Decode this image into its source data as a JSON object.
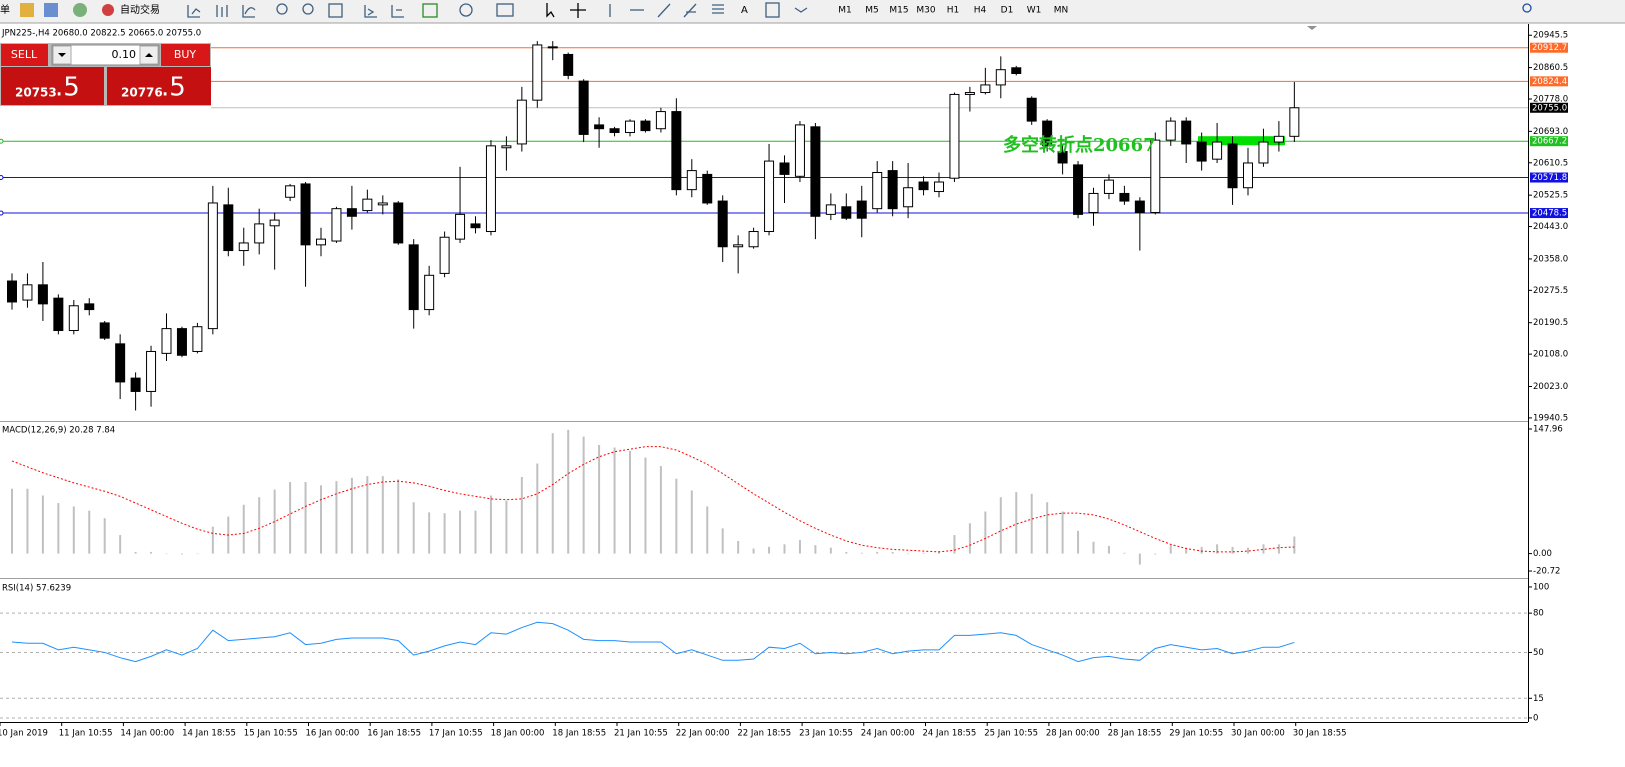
{
  "toolbar": {
    "left_label": "单",
    "auto_trading": "自动交易",
    "text_tool": "A",
    "timeframes": [
      "M1",
      "M5",
      "M15",
      "M30",
      "H1",
      "H4",
      "D1",
      "W1",
      "MN"
    ]
  },
  "trade_panel": {
    "sell": "SELL",
    "lot": "0.10",
    "buy": "BUY",
    "bid_main": "20753",
    "bid_frac": ".5",
    "ask_main": "20776",
    "ask_frac": ".5"
  },
  "time_axis": {
    "labels": [
      "10 Jan 2019",
      "11 Jan 10:55",
      "14 Jan 00:00",
      "14 Jan 18:55",
      "15 Jan 10:55",
      "16 Jan 00:00",
      "16 Jan 18:55",
      "17 Jan 10:55",
      "18 Jan 00:00",
      "18 Jan 18:55",
      "21 Jan 10:55",
      "22 Jan 00:00",
      "22 Jan 18:55",
      "23 Jan 10:55",
      "24 Jan 00:00",
      "24 Jan 18:55",
      "25 Jan 10:55",
      "28 Jan 00:00",
      "28 Jan 18:55",
      "29 Jan 10:55",
      "30 Jan 00:00",
      "30 Jan 18:55"
    ]
  },
  "chart_data": [
    {
      "type": "candlestick",
      "title": "JPN225-,H4 20680.0 20822.5 20665.0 20755.0",
      "open": [
        20300,
        20250,
        20290,
        20255,
        20170,
        20240,
        20190,
        20135,
        20045,
        20010,
        20110,
        20175,
        20115,
        20175,
        20500,
        20380,
        20400,
        20445,
        20520,
        20555,
        20395,
        20405,
        20490,
        20485,
        20500,
        20505,
        20395,
        20225,
        20320,
        20410,
        20450,
        20430,
        20650,
        20660,
        20775,
        20915,
        20895,
        20825,
        20710,
        20700,
        20690,
        20720,
        20700,
        20745,
        20540,
        20580,
        20510,
        20390,
        20390,
        20430,
        20610,
        20575,
        20705,
        20475,
        20495,
        20510,
        20490,
        20590,
        20495,
        20560,
        20535,
        20570,
        20790,
        20795,
        20815,
        20860,
        20780,
        20720,
        20640,
        20605,
        20480,
        20530,
        20530,
        20510,
        20480,
        20670,
        20720,
        20665,
        20620,
        20660,
        20545,
        20610,
        20665,
        20680
      ],
      "high": [
        20320,
        20320,
        20350,
        20265,
        20250,
        20255,
        20195,
        20160,
        20060,
        20130,
        20215,
        20180,
        20190,
        20550,
        20545,
        20440,
        20490,
        20480,
        20555,
        20560,
        20440,
        20495,
        20550,
        20540,
        20525,
        20510,
        20410,
        20340,
        20430,
        20600,
        20470,
        20670,
        20680,
        20810,
        20930,
        20930,
        20900,
        20830,
        20730,
        20705,
        20725,
        20725,
        20755,
        20780,
        20620,
        20590,
        20525,
        20420,
        20440,
        20660,
        20630,
        20720,
        20715,
        20530,
        20530,
        20550,
        20615,
        20615,
        20610,
        20575,
        20585,
        20795,
        20810,
        20860,
        20890,
        20865,
        20785,
        20725,
        20660,
        20615,
        20545,
        20580,
        20550,
        20520,
        20690,
        20730,
        20730,
        20690,
        20715,
        20680,
        20650,
        20700,
        20720,
        20822.5
      ],
      "low": [
        20225,
        20230,
        20195,
        20160,
        20160,
        20210,
        20145,
        19990,
        19960,
        19970,
        20090,
        20100,
        20110,
        20160,
        20365,
        20340,
        20370,
        20330,
        20510,
        20285,
        20365,
        20400,
        20435,
        20480,
        20475,
        20395,
        20175,
        20210,
        20310,
        20400,
        20425,
        20420,
        20590,
        20640,
        20755,
        20880,
        20830,
        20665,
        20650,
        20680,
        20680,
        20690,
        20690,
        20525,
        20520,
        20500,
        20350,
        20320,
        20385,
        20420,
        20505,
        20560,
        20410,
        20460,
        20460,
        20415,
        20480,
        20470,
        20465,
        20525,
        20520,
        20560,
        20745,
        20790,
        20780,
        20840,
        20710,
        20640,
        20580,
        20465,
        20445,
        20515,
        20500,
        20380,
        20475,
        20655,
        20610,
        20590,
        20610,
        20500,
        20525,
        20600,
        20640,
        20665
      ],
      "close": [
        20245,
        20290,
        20240,
        20170,
        20235,
        20225,
        20150,
        20035,
        20010,
        20115,
        20175,
        20105,
        20180,
        20505,
        20380,
        20400,
        20450,
        20460,
        20550,
        20395,
        20410,
        20490,
        20470,
        20515,
        20505,
        20400,
        20225,
        20315,
        20415,
        20475,
        20440,
        20655,
        20655,
        20775,
        20920,
        20915,
        20840,
        20685,
        20700,
        20690,
        20720,
        20695,
        20745,
        20540,
        20590,
        20505,
        20390,
        20395,
        20430,
        20615,
        20580,
        20710,
        20470,
        20500,
        20465,
        20465,
        20585,
        20490,
        20545,
        20540,
        20560,
        20790,
        20795,
        20815,
        20855,
        20845,
        20720,
        20655,
        20610,
        20475,
        20530,
        20565,
        20510,
        20480,
        20670,
        20720,
        20660,
        20615,
        20665,
        20545,
        20610,
        20665,
        20680,
        20755
      ],
      "ylim": [
        19935,
        20975
      ],
      "yticks": [
        {
          "value": 20945.5,
          "label": "20945.5"
        },
        {
          "value": 20860.5,
          "label": "20860.5"
        },
        {
          "value": 20778,
          "label": "20778.0"
        },
        {
          "value": 20693,
          "label": "20693.0"
        },
        {
          "value": 20610.5,
          "label": "20610.5"
        },
        {
          "value": 20525.5,
          "label": "20525.5"
        },
        {
          "value": 20443,
          "label": "20443.0"
        },
        {
          "value": 20358,
          "label": "20358.0"
        },
        {
          "value": 20275.5,
          "label": "20275.5"
        },
        {
          "value": 20190.5,
          "label": "20190.5"
        },
        {
          "value": 20108,
          "label": "20108.0"
        },
        {
          "value": 20023,
          "label": "20023.0"
        },
        {
          "value": 19940.5,
          "label": "19940.5"
        }
      ],
      "levels": [
        {
          "value": 20912.7,
          "label": "20912.7",
          "color": "#ff6a2a"
        },
        {
          "value": 20824.4,
          "label": "20824.4",
          "color": "#ff6a2a"
        },
        {
          "value": 20755,
          "label": "20755.0",
          "color": "#000000"
        },
        {
          "value": 20667.2,
          "label": "20667.2",
          "color": "#20c020"
        },
        {
          "value": 20571.8,
          "label": "20571.8",
          "color": "#1010e0"
        },
        {
          "value": 20478.5,
          "label": "20478.5",
          "color": "#1010e0"
        }
      ],
      "annotation": "多空转折点20667"
    },
    {
      "type": "macd",
      "title": "MACD(12,26,9) 20.28 7.84",
      "histogram": {
        "color": "#c0c0c0",
        "values": [
          77,
          77,
          69,
          60,
          56,
          51,
          42,
          22,
          2,
          2,
          0,
          -1,
          0,
          32,
          44,
          58,
          67,
          76,
          85,
          85,
          81,
          86,
          90,
          92,
          92,
          88,
          61,
          49,
          48,
          51,
          51,
          69,
          63,
          91,
          107,
          143,
          147,
          139,
          129,
          126,
          122,
          114,
          104,
          89,
          75,
          56,
          30,
          15,
          6,
          8,
          11,
          16,
          10,
          7,
          2,
          1,
          2,
          2,
          0,
          1,
          3,
          22,
          36,
          50,
          67,
          73,
          71,
          61,
          50,
          27,
          14,
          9,
          1,
          -13,
          -1,
          11,
          7,
          8,
          11,
          8,
          7,
          11,
          11,
          20.28
        ]
      },
      "signal": {
        "color": "#ff0000",
        "values": [
          110,
          103,
          96,
          90,
          84,
          79,
          74,
          68,
          60,
          52,
          44,
          36,
          29,
          24,
          22,
          24,
          30,
          38,
          47,
          56,
          64,
          71,
          77,
          82,
          85,
          86,
          84,
          80,
          75,
          71,
          68,
          65,
          64,
          65,
          71,
          82,
          95,
          106,
          115,
          121,
          124,
          127,
          127,
          123,
          115,
          106,
          95,
          83,
          71,
          60,
          49,
          39,
          30,
          22,
          15,
          10,
          7,
          5,
          4,
          3,
          2,
          4,
          10,
          18,
          27,
          35,
          41,
          46,
          48,
          48,
          46,
          41,
          34,
          26,
          18,
          11,
          6,
          3,
          2,
          2,
          3,
          5,
          7,
          7.84
        ]
      },
      "ylim": [
        -27.8,
        155.1
      ],
      "yticks": [
        147.96,
        {
          "value": 0,
          "label": "0.00"
        },
        -20.72
      ]
    },
    {
      "type": "line",
      "title": "RSI(14) 57.6239",
      "color": "#1e90ff",
      "values": [
        58,
        57,
        57,
        52,
        54,
        52,
        50,
        46,
        43,
        47,
        52,
        48,
        53,
        67,
        59,
        60,
        61,
        62,
        65,
        56,
        57,
        60,
        61,
        61,
        61,
        59,
        48,
        51,
        55,
        58,
        56,
        65,
        64,
        69,
        73,
        72,
        67,
        60,
        59,
        59,
        58,
        58,
        58,
        49,
        52,
        48,
        44,
        44,
        45,
        54,
        53,
        57,
        49,
        50,
        49,
        50,
        53,
        49,
        51,
        52,
        52,
        63,
        63,
        64,
        65,
        63,
        56,
        52,
        48,
        43,
        46,
        47,
        45,
        44,
        53,
        56,
        54,
        52,
        53,
        49,
        51,
        54,
        54,
        57.6239
      ],
      "ylim": [
        -3.1,
        105.3
      ],
      "yticks": [
        100,
        80,
        50,
        15,
        0
      ]
    }
  ]
}
